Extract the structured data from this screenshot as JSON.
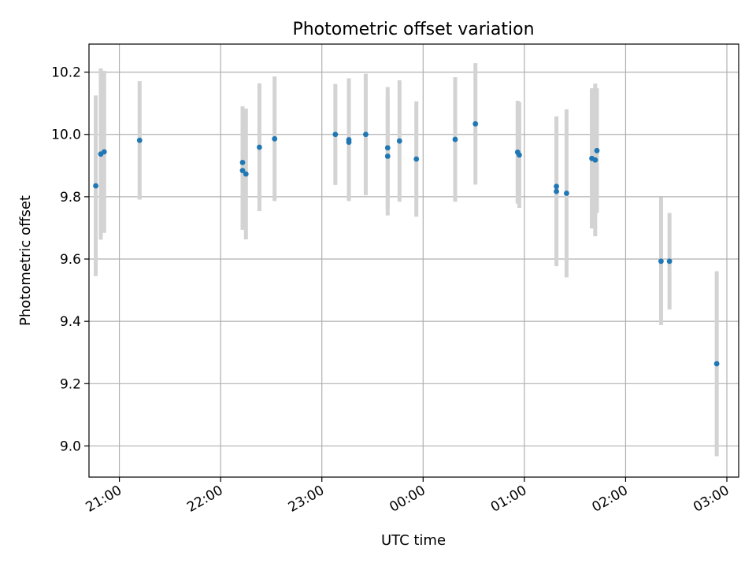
{
  "chart_data": {
    "type": "scatter",
    "title": "Photometric offset variation",
    "xlabel": "UTC time",
    "ylabel": "Photometric offset",
    "xlim": [
      "20:42",
      "03:07"
    ],
    "ylim": [
      8.9,
      10.29
    ],
    "grid": true,
    "x_tick_labels": [
      "21:00",
      "22:00",
      "23:00",
      "00:00",
      "01:00",
      "02:00",
      "03:00"
    ],
    "y_ticks": [
      9.0,
      9.2,
      9.4,
      9.6,
      9.8,
      10.0,
      10.2
    ],
    "y_tick_labels": [
      "9.0",
      "9.2",
      "9.4",
      "9.6",
      "9.8",
      "10.0",
      "10.2"
    ],
    "marker_color": "#1f77b4",
    "errorbar_color": "#d3d3d3",
    "series": [
      {
        "points": [
          {
            "x": "20:46",
            "y": 9.835,
            "err": 0.29
          },
          {
            "x": "20:49",
            "y": 9.937,
            "err": 0.275
          },
          {
            "x": "20:51",
            "y": 9.944,
            "err": 0.26
          },
          {
            "x": "21:12",
            "y": 9.981,
            "err": 0.19
          },
          {
            "x": "22:13",
            "y": 9.884,
            "err": 0.19
          },
          {
            "x": "22:13",
            "y": 9.91,
            "err": 0.18
          },
          {
            "x": "22:15",
            "y": 9.873,
            "err": 0.21
          },
          {
            "x": "22:23",
            "y": 9.959,
            "err": 0.205
          },
          {
            "x": "22:32",
            "y": 9.986,
            "err": 0.2
          },
          {
            "x": "23:08",
            "y": 10.0,
            "err": 0.162
          },
          {
            "x": "23:16",
            "y": 9.983,
            "err": 0.197
          },
          {
            "x": "23:16",
            "y": 9.975,
            "err": 0.175
          },
          {
            "x": "23:26",
            "y": 10.0,
            "err": 0.195
          },
          {
            "x": "23:39",
            "y": 9.957,
            "err": 0.195
          },
          {
            "x": "23:39",
            "y": 9.93,
            "err": 0.19
          },
          {
            "x": "23:46",
            "y": 9.979,
            "err": 0.195
          },
          {
            "x": "23:56",
            "y": 9.921,
            "err": 0.185
          },
          {
            "x": "00:19",
            "y": 9.984,
            "err": 0.2
          },
          {
            "x": "00:31",
            "y": 10.034,
            "err": 0.195
          },
          {
            "x": "00:56",
            "y": 9.943,
            "err": 0.165
          },
          {
            "x": "00:57",
            "y": 9.934,
            "err": 0.17
          },
          {
            "x": "01:19",
            "y": 9.833,
            "err": 0.225
          },
          {
            "x": "01:19",
            "y": 9.817,
            "err": 0.24
          },
          {
            "x": "01:25",
            "y": 9.811,
            "err": 0.27
          },
          {
            "x": "01:40",
            "y": 9.923,
            "err": 0.225
          },
          {
            "x": "01:42",
            "y": 9.918,
            "err": 0.245
          },
          {
            "x": "01:43",
            "y": 9.948,
            "err": 0.2
          },
          {
            "x": "02:21",
            "y": 9.593,
            "err": 0.205
          },
          {
            "x": "02:26",
            "y": 9.593,
            "err": 0.155
          },
          {
            "x": "02:54",
            "y": 9.264,
            "err": 0.297
          }
        ]
      }
    ]
  }
}
